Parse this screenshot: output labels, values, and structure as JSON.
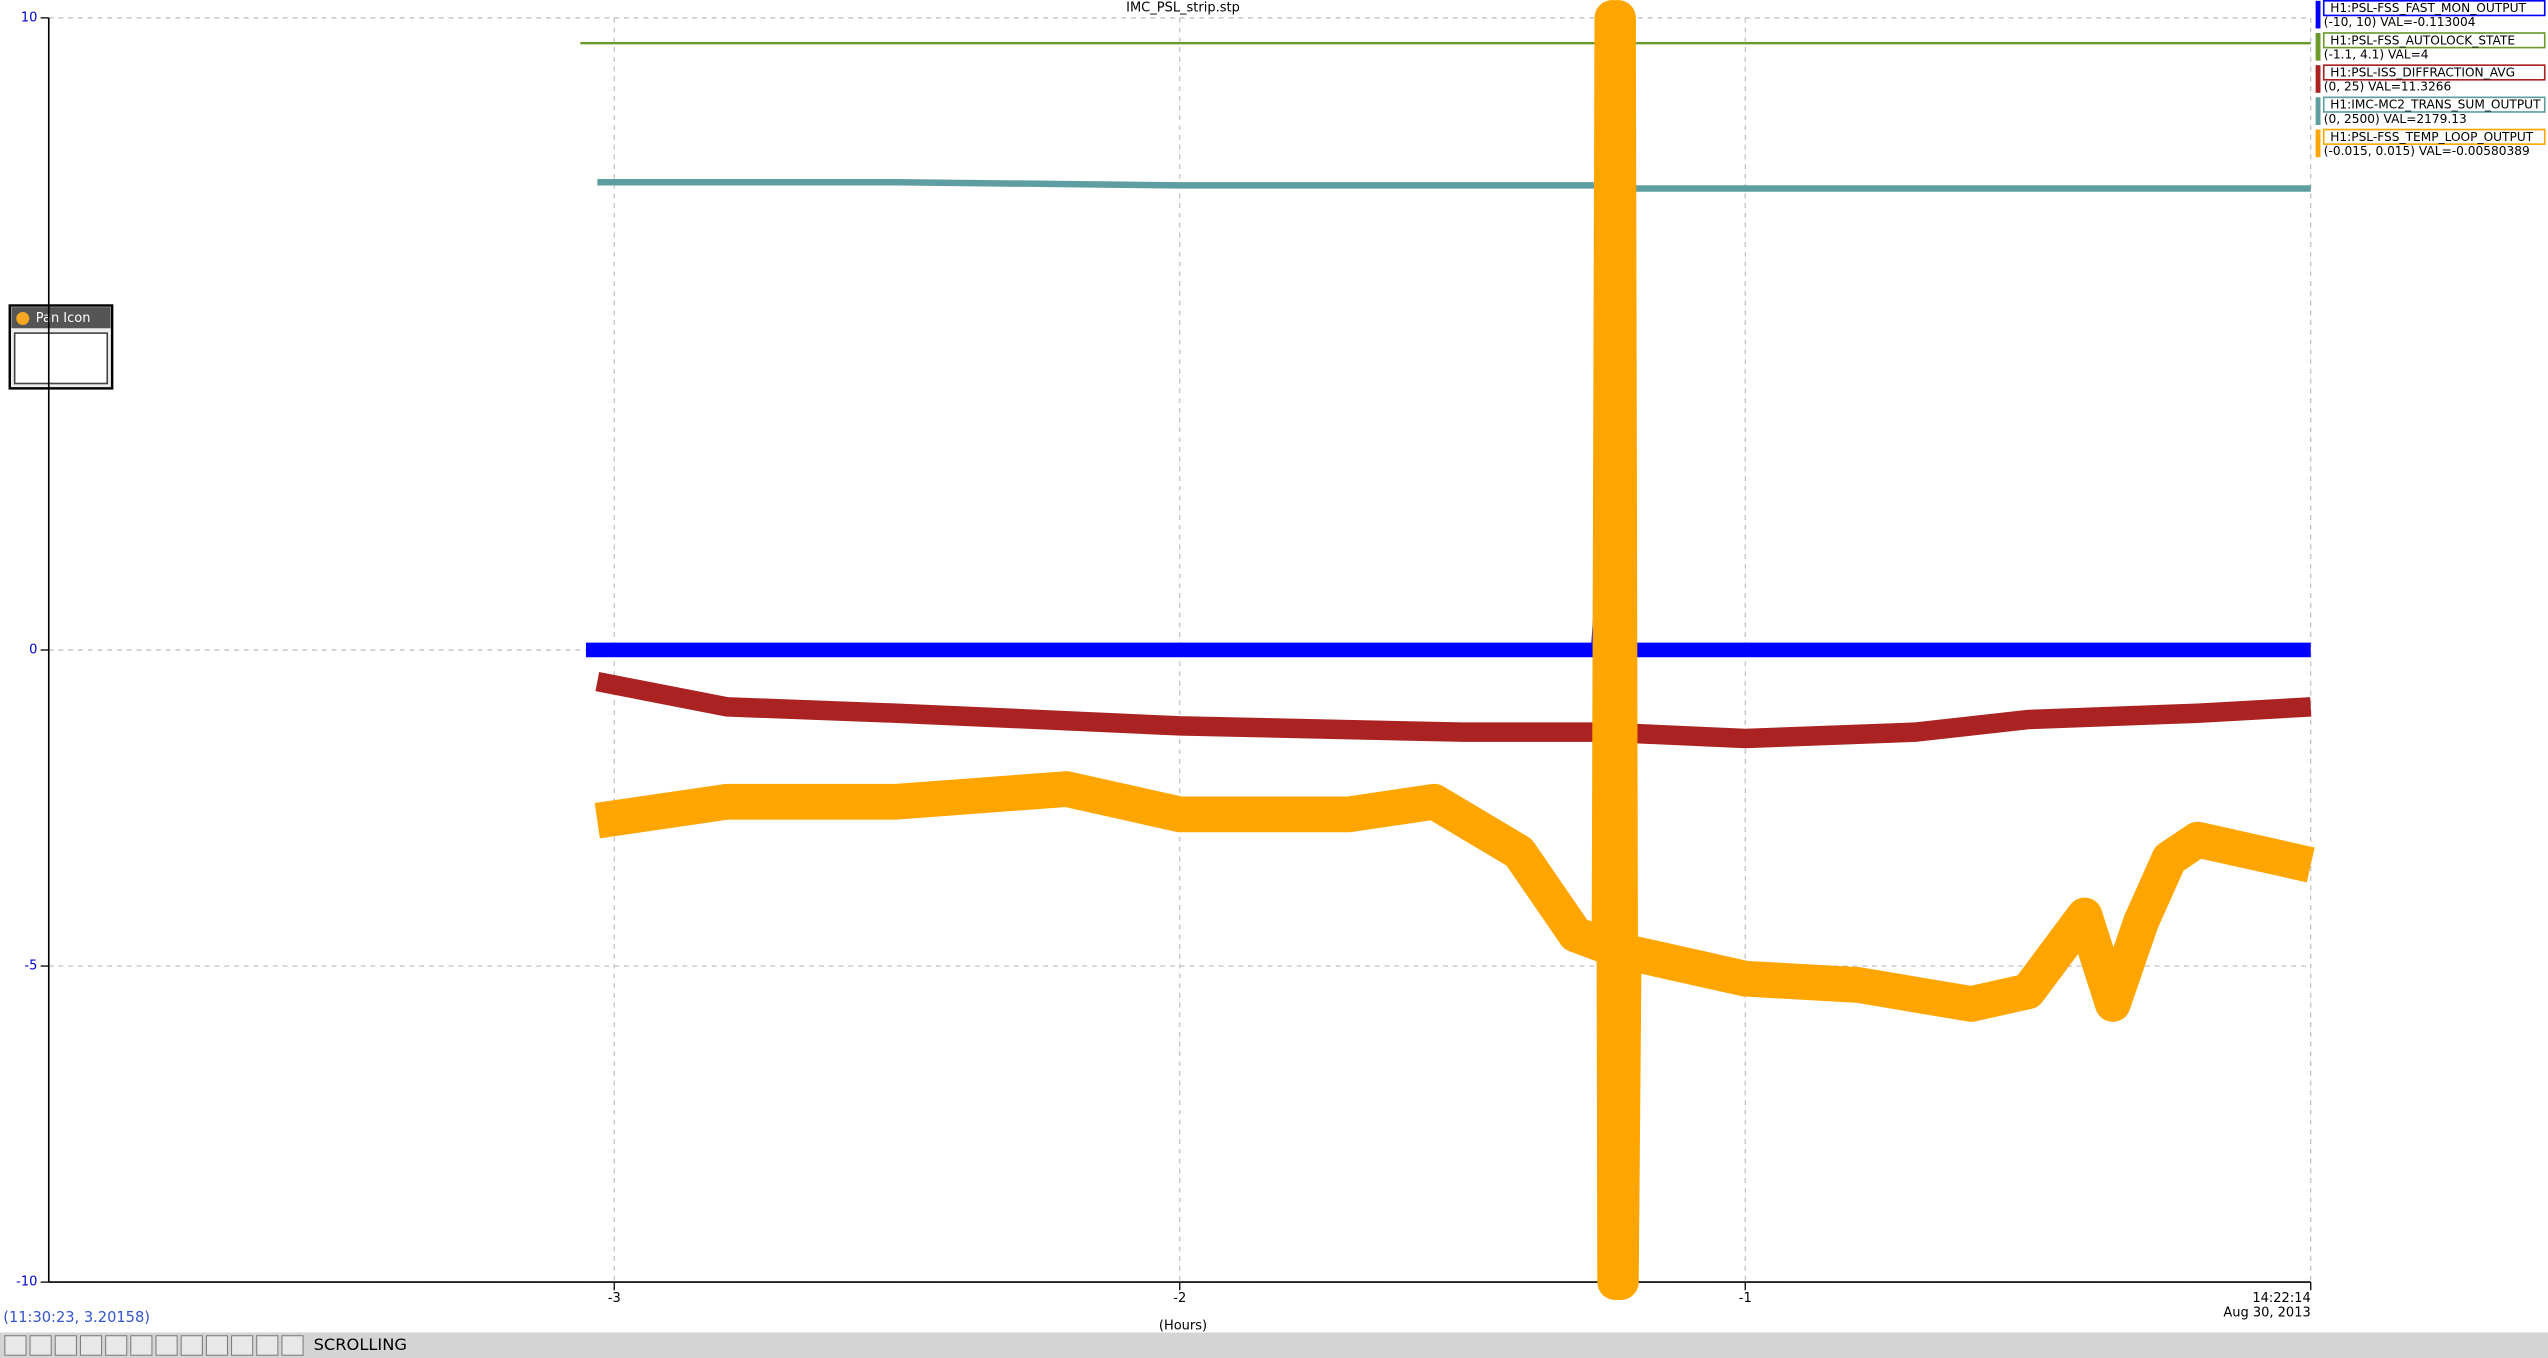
{
  "chart_data": {
    "type": "line",
    "title": "IMC_PSL_strip.stp",
    "x_label": "(Hours)",
    "date_label": "Aug 30, 2013",
    "cursor_readout": "(11:30:23, 3.20158)",
    "mode": "SCROLLING",
    "xlim": [
      -4,
      0
    ],
    "xticks": [
      -3,
      -2,
      -1,
      {
        "value": 0,
        "label": "14:22:14"
      }
    ],
    "ylim": [
      -10,
      10
    ],
    "yticks": [
      -10,
      -5,
      0,
      10
    ],
    "grid": true,
    "series": [
      {
        "name": "H1:PSL-FSS_FAST_MON_OUTPUT",
        "range_label": "(-10, 10) VAL=-0.113004",
        "color": "#0000ff",
        "x": [
          -3.05,
          -2.5,
          -2,
          -1.5,
          -1.26,
          -1.24,
          -1.235,
          -1.23,
          -1.22,
          -1.2,
          -1,
          -0.5,
          0
        ],
        "values": [
          0,
          0,
          0,
          0,
          0,
          2.8,
          -1,
          1.5,
          0,
          0,
          0,
          0,
          0
        ]
      },
      {
        "name": "H1:PSL-FSS_AUTOLOCK_STATE",
        "range_label": "(-1.1, 4.1) VAL=4",
        "color": "#6b9a2a",
        "x": [
          -3.06,
          0
        ],
        "values": [
          9.6,
          9.6
        ]
      },
      {
        "name": "H1:PSL-ISS_DIFFRACTION_AVG",
        "range_label": "(0, 25) VAL=11.3266",
        "color": "#aa2222",
        "x": [
          -3.03,
          -2.8,
          -2.5,
          -2,
          -1.5,
          -1.25,
          -1,
          -0.7,
          -0.5,
          -0.2,
          0
        ],
        "values": [
          -0.5,
          -0.9,
          -1.0,
          -1.2,
          -1.3,
          -1.3,
          -1.4,
          -1.3,
          -1.1,
          -1.0,
          -0.9
        ]
      },
      {
        "name": "H1:IMC-MC2_TRANS_SUM_OUTPUT",
        "range_label": "(0, 2500) VAL=2179.13",
        "color": "#5f9ea0",
        "x": [
          -3.03,
          -2.5,
          -2,
          -1.5,
          -1.25,
          -1.22,
          -1.215,
          -1.21,
          -1,
          -0.5,
          0
        ],
        "values": [
          7.4,
          7.4,
          7.35,
          7.35,
          7.35,
          7.3,
          -10,
          7.3,
          7.3,
          7.3,
          7.3
        ]
      },
      {
        "name": "H1:PSL-FSS_TEMP_LOOP_OUTPUT",
        "range_label": "(-0.015, 0.015) VAL=-0.00580389",
        "color": "#ffa500",
        "x": [
          -3.03,
          -2.8,
          -2.5,
          -2.2,
          -2,
          -1.7,
          -1.55,
          -1.4,
          -1.3,
          -1.24,
          -1.235,
          -1.23,
          -1.225,
          -1.22,
          -1.215,
          -1.2,
          -1,
          -0.8,
          -0.6,
          -0.5,
          -0.4,
          -0.35,
          -0.3,
          -0.25,
          -0.2,
          0
        ],
        "values": [
          -2.7,
          -2.4,
          -2.4,
          -2.2,
          -2.6,
          -2.6,
          -2.4,
          -3.2,
          -4.5,
          -4.7,
          10,
          -10,
          10,
          -10,
          -4.8,
          -4.8,
          -5.2,
          -5.3,
          -5.6,
          -5.4,
          -4.2,
          -5.6,
          -4.3,
          -3.3,
          -3,
          -3.4
        ]
      }
    ]
  },
  "pan_icon": {
    "title": "Pan Icon"
  }
}
